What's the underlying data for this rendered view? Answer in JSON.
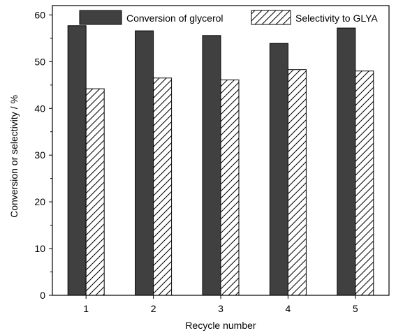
{
  "chart_data": {
    "type": "bar",
    "categories": [
      "1",
      "2",
      "3",
      "4",
      "5"
    ],
    "series": [
      {
        "name": "Conversion of glycerol",
        "values": [
          57.7,
          56.6,
          55.6,
          53.9,
          57.2
        ],
        "color": "#404040",
        "pattern": "solid"
      },
      {
        "name": "Selectivity to GLYA",
        "values": [
          44.2,
          46.5,
          46.1,
          48.3,
          48.0
        ],
        "color": "#ffffff",
        "pattern": "hatched"
      }
    ],
    "xlabel": "Recycle number",
    "ylabel": "Conversion or selectivity / %",
    "ylim": [
      0,
      62
    ],
    "yticks": [
      0,
      10,
      20,
      30,
      40,
      50,
      60
    ],
    "grid": false,
    "legend_position": "top"
  }
}
